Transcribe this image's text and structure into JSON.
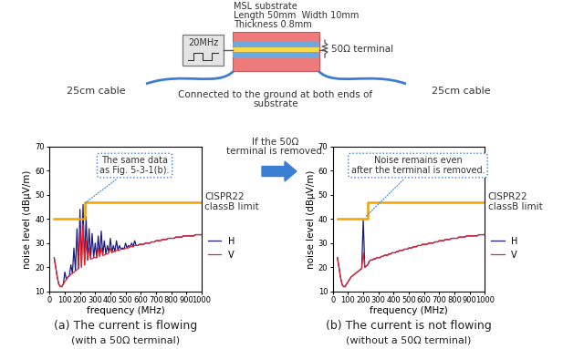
{
  "diagram": {
    "substrate": [
      "MSL substrate",
      "Length 50mm  Width 10mm",
      "Thickness 0.8mm"
    ],
    "source": "20MHz",
    "terminal": "50Ω terminal",
    "cables": [
      "25cm cable",
      "25cm cable"
    ],
    "ground_note": "Connected to the ground at both ends of\nsubstrate",
    "transition": "If the 50Ω\nterminal is removed."
  },
  "chart_data": [
    {
      "type": "line",
      "title": "(a) The current is flowing",
      "subtitle": "(with a 50Ω terminal)",
      "x_label": "frequency (MHz)",
      "y_label": "noise level (dBμV/m)",
      "annotation": "The same data\nas Fig. 5-3-1(b).",
      "xlim": [
        0,
        1000
      ],
      "ylim": [
        10,
        70
      ],
      "xticks": [
        0,
        100,
        200,
        300,
        400,
        500,
        600,
        700,
        800,
        900,
        1000
      ],
      "yticks": [
        10,
        20,
        30,
        40,
        50,
        60,
        70
      ],
      "grid": false,
      "legend": "right",
      "x": [
        30,
        40,
        50,
        60,
        70,
        80,
        90,
        100,
        110,
        120,
        130,
        140,
        150,
        160,
        170,
        180,
        190,
        200,
        210,
        220,
        230,
        240,
        250,
        260,
        270,
        280,
        290,
        300,
        310,
        320,
        330,
        340,
        350,
        360,
        370,
        380,
        390,
        400,
        410,
        420,
        430,
        440,
        450,
        460,
        470,
        480,
        490,
        500,
        510,
        520,
        530,
        540,
        550,
        560,
        570,
        580,
        590,
        600,
        610,
        620,
        630,
        640,
        650,
        660,
        670,
        680,
        690,
        700,
        710,
        720,
        730,
        740,
        750,
        760,
        770,
        780,
        790,
        800,
        810,
        820,
        830,
        840,
        850,
        860,
        870,
        880,
        890,
        900,
        910,
        920,
        930,
        940,
        950,
        960,
        970,
        980,
        990,
        1000
      ],
      "series": [
        {
          "name": "H",
          "color": "#1c1c7a",
          "values": [
            24,
            20,
            16,
            13,
            12,
            12,
            13,
            18,
            15,
            16,
            16.5,
            21,
            17.5,
            28,
            18.5,
            36,
            19.5,
            44,
            20,
            46,
            21,
            41,
            23,
            36,
            23.5,
            34,
            24,
            30,
            24,
            33,
            24.5,
            35,
            25,
            31,
            25.5,
            29,
            26,
            32,
            26,
            29,
            26.5,
            31,
            27,
            29,
            27.5,
            28,
            27.5,
            30,
            28,
            29,
            28.5,
            30,
            28.5,
            31,
            29,
            29,
            29.5,
            29.5,
            29.5,
            29.5,
            30,
            30,
            30,
            30,
            30.5,
            30.5,
            30.5,
            31,
            31,
            31,
            31,
            31.5,
            31.5,
            31.5,
            31.5,
            32,
            32,
            32,
            32,
            32,
            32.5,
            32.5,
            32.5,
            32.5,
            32.5,
            33,
            33,
            33,
            33,
            33,
            33,
            33,
            33,
            33.5,
            33.5,
            33.5,
            33.5,
            33.5
          ]
        },
        {
          "name": "V",
          "color": "#e8222b",
          "values": [
            24,
            20,
            16,
            13,
            12,
            12,
            13,
            14,
            15,
            16,
            16.5,
            17,
            17.5,
            18,
            18.5,
            19,
            19.5,
            36,
            20,
            38,
            21,
            31,
            23,
            28,
            23.5,
            23.5,
            24,
            24,
            24,
            28,
            24.5,
            28,
            25,
            25,
            25.5,
            25.5,
            26,
            28,
            26,
            26.5,
            26.5,
            27,
            27,
            27,
            27.5,
            27.5,
            27.5,
            28,
            28,
            28,
            28.5,
            28.5,
            28.5,
            29,
            29,
            29,
            29.5,
            29.5,
            29.5,
            29.5,
            30,
            30,
            30,
            30,
            30.5,
            30.5,
            30.5,
            31,
            31,
            31,
            31,
            31.5,
            31.5,
            31.5,
            31.5,
            32,
            32,
            32,
            32,
            32,
            32.5,
            32.5,
            32.5,
            32.5,
            32.5,
            33,
            33,
            33,
            33,
            33,
            33,
            33,
            33,
            33.5,
            33.5,
            33.5,
            33.5,
            33.5
          ]
        }
      ],
      "limit": {
        "label": "CISPR22\nclassB limit",
        "color": "#f4a300",
        "x": [
          30,
          230,
          230,
          1000
        ],
        "values": [
          40,
          40,
          47,
          47
        ]
      }
    },
    {
      "type": "line",
      "title": "(b) The current is not flowing",
      "subtitle": "(without a 50Ω terminal)",
      "x_label": "frequency (MHz)",
      "y_label": "noise level (dBμV/m)",
      "annotation": "Noise remains even\nafter the terminal is removed.",
      "xlim": [
        0,
        1000
      ],
      "ylim": [
        10,
        70
      ],
      "xticks": [
        0,
        100,
        200,
        300,
        400,
        500,
        600,
        700,
        800,
        900,
        1000
      ],
      "yticks": [
        10,
        20,
        30,
        40,
        50,
        60,
        70
      ],
      "grid": false,
      "legend": "right",
      "x": [
        30,
        40,
        50,
        60,
        70,
        80,
        90,
        100,
        110,
        120,
        130,
        140,
        150,
        160,
        170,
        180,
        190,
        200,
        210,
        220,
        230,
        240,
        250,
        260,
        270,
        280,
        290,
        300,
        310,
        320,
        330,
        340,
        350,
        360,
        370,
        380,
        390,
        400,
        410,
        420,
        430,
        440,
        450,
        460,
        470,
        480,
        490,
        500,
        510,
        520,
        530,
        540,
        550,
        560,
        570,
        580,
        590,
        600,
        610,
        620,
        630,
        640,
        650,
        660,
        670,
        680,
        690,
        700,
        710,
        720,
        730,
        740,
        750,
        760,
        770,
        780,
        790,
        800,
        810,
        820,
        830,
        840,
        850,
        860,
        870,
        880,
        890,
        900,
        910,
        920,
        930,
        940,
        950,
        960,
        970,
        980,
        990,
        1000
      ],
      "series": [
        {
          "name": "H",
          "color": "#1c1c7a",
          "values": [
            24,
            20,
            16,
            13,
            12,
            12,
            13,
            14,
            15,
            16,
            16.5,
            17,
            17.5,
            18,
            18.5,
            19,
            19.5,
            40,
            20,
            20.5,
            21,
            22.5,
            23,
            23,
            23.5,
            23.5,
            24,
            24,
            24,
            24.5,
            24.5,
            25,
            25,
            25,
            25.5,
            25.5,
            26,
            26,
            26,
            26.5,
            26.5,
            27,
            27,
            27,
            27.5,
            27.5,
            27.5,
            28,
            28,
            28,
            28.5,
            28.5,
            28.5,
            29,
            29,
            29,
            29.5,
            29.5,
            29.5,
            29.5,
            30,
            30,
            30,
            30,
            30.5,
            30.5,
            30.5,
            31,
            31,
            31,
            31,
            31.5,
            31.5,
            31.5,
            31.5,
            32,
            32,
            32,
            32,
            32,
            32.5,
            32.5,
            32.5,
            32.5,
            32.5,
            33,
            33,
            33,
            33,
            33,
            33,
            33,
            33,
            33.5,
            33.5,
            33.5,
            33.5,
            33.5
          ]
        },
        {
          "name": "V",
          "color": "#e8222b",
          "values": [
            24,
            20,
            16,
            13,
            12,
            12,
            13,
            14,
            15,
            16,
            16.5,
            17,
            17.5,
            18,
            18.5,
            19,
            19.5,
            26,
            20,
            20.5,
            21,
            22.5,
            23,
            23,
            23.5,
            23.5,
            24,
            24,
            24,
            24.5,
            24.5,
            25,
            25,
            25,
            25.5,
            25.5,
            26,
            26,
            26,
            26.5,
            26.5,
            27,
            27,
            27,
            27.5,
            27.5,
            27.5,
            28,
            28,
            28,
            28.5,
            28.5,
            28.5,
            29,
            29,
            29,
            29.5,
            29.5,
            29.5,
            29.5,
            30,
            30,
            30,
            30,
            30.5,
            30.5,
            30.5,
            31,
            31,
            31,
            31,
            31.5,
            31.5,
            31.5,
            31.5,
            32,
            32,
            32,
            32,
            32,
            32.5,
            32.5,
            32.5,
            32.5,
            32.5,
            33,
            33,
            33,
            33,
            33,
            33,
            33,
            33,
            33.5,
            33.5,
            33.5,
            33.5,
            33.5
          ]
        }
      ],
      "limit": {
        "label": "CISPR22\nclassB limit",
        "color": "#f4a300",
        "x": [
          30,
          230,
          230,
          1000
        ],
        "values": [
          40,
          40,
          47,
          47
        ]
      }
    }
  ]
}
